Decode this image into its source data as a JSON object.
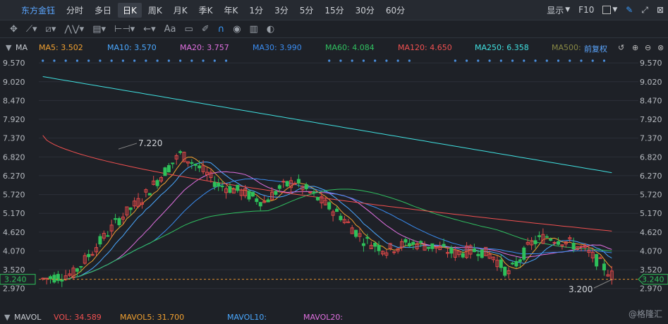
{
  "toolbar": {
    "stock_name": "东方金钰",
    "periods": [
      "分时",
      "多日",
      "日K",
      "周K",
      "月K",
      "季K",
      "年K",
      "1分",
      "3分",
      "5分",
      "15分",
      "30分",
      "60分"
    ],
    "active_period": "日K",
    "display_label": "显示",
    "f10_label": "F10"
  },
  "drawbar": {
    "text_tool_label": "Aa"
  },
  "ma_legend": {
    "title": "MA",
    "items": [
      {
        "label": "MA5: 3.502",
        "color": "#f0a030"
      },
      {
        "label": "MA10: 3.570",
        "color": "#4aa8ff"
      },
      {
        "label": "MA20: 3.757",
        "color": "#e070e0"
      },
      {
        "label": "MA30: 3.990",
        "color": "#3a8cf0"
      },
      {
        "label": "MA60: 4.084",
        "color": "#30c060"
      },
      {
        "label": "MA120: 4.650",
        "color": "#f05050"
      },
      {
        "label": "MA250: 6.358",
        "color": "#40e0e0"
      },
      {
        "label": "MA500:",
        "color": "#888844"
      }
    ],
    "adjust_label": "前复权"
  },
  "vol_legend": {
    "title": "MAVOL",
    "items": [
      {
        "label": "VOL: 34.589",
        "color": "#f05050"
      },
      {
        "label": "MAVOL5: 31.700",
        "color": "#f0a030"
      },
      {
        "label": "MAVOL10:",
        "color": "#4aa8ff"
      },
      {
        "label": "MAVOL20:",
        "color": "#e070e0"
      }
    ]
  },
  "chart_data": {
    "type": "candlestick",
    "y_ticks": [
      9.57,
      9.02,
      8.47,
      7.92,
      7.37,
      6.82,
      6.27,
      5.72,
      5.17,
      4.62,
      4.07,
      3.52,
      2.97
    ],
    "ylim": [
      2.82,
      9.8
    ],
    "high_annotation": "7.220",
    "low_annotation": "3.200",
    "current_price": "3.240",
    "candle_count": 150,
    "ma250_endpoints": [
      9.17,
      6.36
    ],
    "ma120_endpoints": [
      7.45,
      4.65
    ]
  },
  "watermark": "@格隆汇"
}
